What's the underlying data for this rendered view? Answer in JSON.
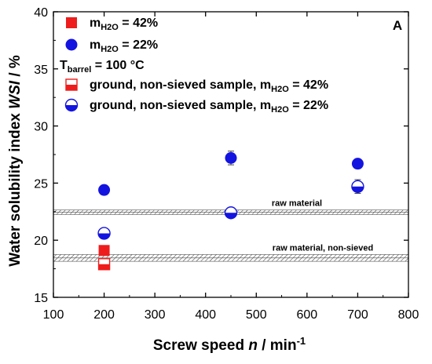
{
  "chart_data": {
    "type": "scatter",
    "panel_label": "A",
    "xlabel": {
      "main": "Screw speed ",
      "var": "n",
      "unit_main": " / min",
      "unit_sup": "-1"
    },
    "ylabel": {
      "main": "Water solubility index ",
      "var": "WSI",
      "unit": " / %"
    },
    "xlim": [
      100,
      800
    ],
    "ylim": [
      15,
      40
    ],
    "x_ticks": [
      100,
      200,
      300,
      400,
      500,
      600,
      700,
      800
    ],
    "y_ticks": [
      15,
      20,
      25,
      30,
      35,
      40
    ],
    "legend": {
      "placement": "top-left",
      "entries": [
        {
          "prefix": "m",
          "sub": "H2O",
          "suffix": " = 42%",
          "marker": "square-filled"
        },
        {
          "prefix": "m",
          "sub": "H2O",
          "suffix": " = 22%",
          "marker": "circle-filled"
        },
        {
          "prefix": "T",
          "sub": "barrel",
          "suffix": " = 100 °C",
          "marker": "none"
        },
        {
          "prefix": "ground, non-sieved sample, m",
          "sub": "H2O",
          "suffix": " = 42%",
          "marker": "square-half"
        },
        {
          "prefix": "ground, non-sieved sample, m",
          "sub": "H2O",
          "suffix": " = 22%",
          "marker": "circle-half"
        }
      ]
    },
    "series": [
      {
        "marker": "square-filled",
        "color": "#ee1c1c",
        "points": [
          {
            "x": 200,
            "y": 19.1,
            "err": 0.3
          }
        ]
      },
      {
        "marker": "circle-filled",
        "color": "#1414e0",
        "points": [
          {
            "x": 200,
            "y": 24.4,
            "err": 0.3
          },
          {
            "x": 450,
            "y": 27.2,
            "err": 0.6
          },
          {
            "x": 700,
            "y": 26.7,
            "err": 0.3
          }
        ]
      },
      {
        "marker": "square-half",
        "color": "#ee1c1c",
        "points": [
          {
            "x": 200,
            "y": 17.9,
            "err": 0.3
          }
        ]
      },
      {
        "marker": "circle-half",
        "color": "#1414e0",
        "points": [
          {
            "x": 200,
            "y": 20.6,
            "err": 0.3
          },
          {
            "x": 450,
            "y": 22.4,
            "err": 0.3
          },
          {
            "x": 700,
            "y": 24.7,
            "err": 0.6
          }
        ]
      }
    ],
    "reference_bands": [
      {
        "label": "raw material",
        "y": 22.45,
        "err": 0.2
      },
      {
        "label": "raw material, non-sieved",
        "y": 18.45,
        "err": 0.3
      }
    ],
    "grid": false
  }
}
